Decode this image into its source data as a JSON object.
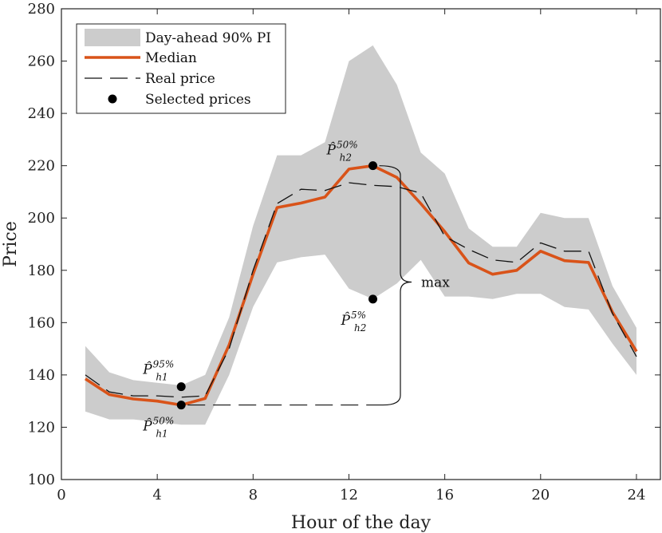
{
  "chart_data": {
    "type": "line",
    "title": "",
    "xlabel": "Hour of the day",
    "ylabel": "Price",
    "xlim": [
      0,
      25
    ],
    "ylim": [
      100,
      280
    ],
    "xticks": [
      0,
      4,
      8,
      12,
      16,
      20,
      24
    ],
    "yticks": [
      100,
      120,
      140,
      160,
      180,
      200,
      220,
      240,
      260,
      280
    ],
    "grid": false,
    "legend_position": "top-left",
    "x": [
      1,
      2,
      3,
      4,
      5,
      6,
      7,
      8,
      9,
      10,
      11,
      12,
      13,
      14,
      15,
      16,
      17,
      18,
      19,
      20,
      21,
      22,
      23,
      24
    ],
    "series": [
      {
        "name": "Day-ahead 90% PI",
        "kind": "band",
        "color": "#cccccc",
        "lower": [
          126,
          123,
          123,
          122,
          121,
          121,
          140,
          166,
          183,
          185,
          186,
          173,
          169,
          175,
          184,
          170,
          170,
          169,
          171,
          171,
          166,
          165,
          152,
          140
        ],
        "upper": [
          151,
          141,
          138,
          137,
          136,
          140,
          162,
          197,
          224,
          224,
          229,
          260,
          266,
          251,
          225,
          217,
          196,
          189,
          189,
          202,
          200,
          200,
          174,
          158
        ]
      },
      {
        "name": "Median",
        "kind": "line",
        "color": "#d95319",
        "values": [
          138.5,
          132.5,
          130.8,
          130,
          128.5,
          131,
          151.5,
          178.5,
          204,
          205.7,
          208,
          218.7,
          220,
          215.5,
          205.5,
          194.8,
          182.8,
          178.5,
          180,
          187.3,
          183.7,
          183,
          164,
          149
        ]
      },
      {
        "name": "Real price",
        "kind": "dashed",
        "color": "#111111",
        "values": [
          140,
          133.5,
          132,
          132,
          131.5,
          132,
          150,
          180,
          205.5,
          211,
          210.5,
          213.5,
          212.5,
          212,
          209.5,
          193,
          188,
          184,
          183,
          190.5,
          187.3,
          187.3,
          163.5,
          147
        ]
      }
    ],
    "selected_prices": [
      {
        "name": "Selected prices",
        "x": 5,
        "y": 135.5,
        "label": "P̂",
        "superscript": "95%",
        "subscript": "h1"
      },
      {
        "name": "Selected prices",
        "x": 5,
        "y": 128.5,
        "label": "P̂",
        "superscript": "50%",
        "subscript": "h1"
      },
      {
        "name": "Selected prices",
        "x": 13,
        "y": 220,
        "label": "P̂",
        "superscript": "50%",
        "subscript": "h2"
      },
      {
        "name": "Selected prices",
        "x": 13,
        "y": 169,
        "label": "P̂",
        "superscript": "5%",
        "subscript": "h2"
      }
    ],
    "legend": [
      "Day-ahead 90% PI",
      "Median",
      "Real price",
      "Selected prices"
    ],
    "annotation": {
      "text": "max",
      "y_low": 128.5,
      "y_high": 220
    }
  }
}
